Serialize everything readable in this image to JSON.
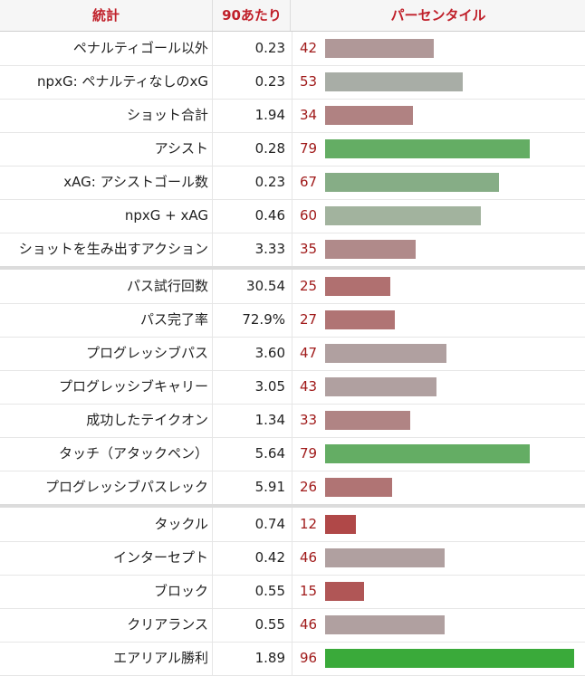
{
  "header": {
    "stat": "統計",
    "per90": "90あたり",
    "percentile": "パーセンタイル"
  },
  "chart_data": {
    "type": "bar",
    "xlim": [
      0,
      100
    ],
    "groups": [
      [
        {
          "label": "ペナルティゴール以外",
          "per90": "0.23",
          "percentile": 42,
          "color": "#b09898"
        },
        {
          "label": "npxG: ペナルティなしのxG",
          "per90": "0.23",
          "percentile": 53,
          "color": "#a8ada6"
        },
        {
          "label": "ショット合計",
          "per90": "1.94",
          "percentile": 34,
          "color": "#b08282"
        },
        {
          "label": "アシスト",
          "per90": "0.28",
          "percentile": 79,
          "color": "#64ad64"
        },
        {
          "label": "xAG: アシストゴール数",
          "per90": "0.23",
          "percentile": 67,
          "color": "#86ad86"
        },
        {
          "label": "npxG + xAG",
          "per90": "0.46",
          "percentile": 60,
          "color": "#a2b39e"
        },
        {
          "label": "ショットを生み出すアクション",
          "per90": "3.33",
          "percentile": 35,
          "color": "#b08a8a"
        }
      ],
      [
        {
          "label": "パス試行回数",
          "per90": "30.54",
          "percentile": 25,
          "color": "#b07070"
        },
        {
          "label": "パス完了率",
          "per90": "72.9%",
          "percentile": 27,
          "color": "#b07474"
        },
        {
          "label": "プログレッシブパス",
          "per90": "3.60",
          "percentile": 47,
          "color": "#b0a0a0"
        },
        {
          "label": "プログレッシブキャリー",
          "per90": "3.05",
          "percentile": 43,
          "color": "#b0a0a0"
        },
        {
          "label": "成功したテイクオン",
          "per90": "1.34",
          "percentile": 33,
          "color": "#b08484"
        },
        {
          "label": "タッチ（アタックペン）",
          "per90": "5.64",
          "percentile": 79,
          "color": "#64ad64"
        },
        {
          "label": "プログレッシブパスレック",
          "per90": "5.91",
          "percentile": 26,
          "color": "#b07474"
        }
      ],
      [
        {
          "label": "タックル",
          "per90": "0.74",
          "percentile": 12,
          "color": "#b04848"
        },
        {
          "label": "インターセプト",
          "per90": "0.42",
          "percentile": 46,
          "color": "#b0a0a0"
        },
        {
          "label": "ブロック",
          "per90": "0.55",
          "percentile": 15,
          "color": "#b05656"
        },
        {
          "label": "クリアランス",
          "per90": "0.55",
          "percentile": 46,
          "color": "#b0a0a0"
        },
        {
          "label": "エアリアル勝利",
          "per90": "1.89",
          "percentile": 96,
          "color": "#3aaa3a"
        }
      ]
    ]
  }
}
